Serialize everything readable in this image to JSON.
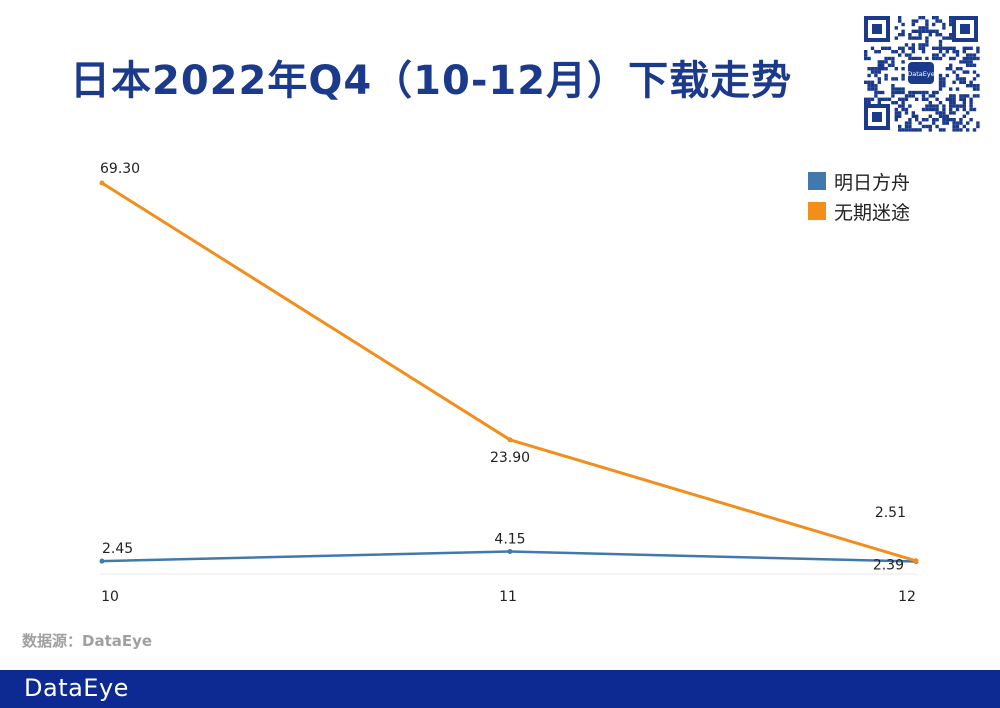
{
  "header": {
    "title": "日本2022年Q4（10-12月）下载走势"
  },
  "qr": {
    "center_label": "DataEye"
  },
  "footer": {
    "source_text": "数据源：DataEye",
    "logo_text": "DataEye"
  },
  "colors": {
    "title": "#1b3a8c",
    "series_1": "#4179ad",
    "series_2": "#f28e1c",
    "footer_bar": "#0d2a93"
  },
  "chart_data": {
    "type": "line",
    "title": "",
    "xlabel": "",
    "ylabel": "",
    "categories": [
      "10",
      "11",
      "12"
    ],
    "ylim": [
      0,
      70
    ],
    "legend_position": "top-right",
    "grid": false,
    "series": [
      {
        "name": "明日方舟",
        "color": "#4179ad",
        "values": [
          2.45,
          4.15,
          2.39
        ],
        "labels": [
          "2.45",
          "4.15",
          "2.39"
        ]
      },
      {
        "name": "无期迷途",
        "color": "#f28e1c",
        "values": [
          69.3,
          23.9,
          2.51
        ],
        "labels": [
          "69.30",
          "23.90",
          "2.51"
        ]
      }
    ]
  }
}
